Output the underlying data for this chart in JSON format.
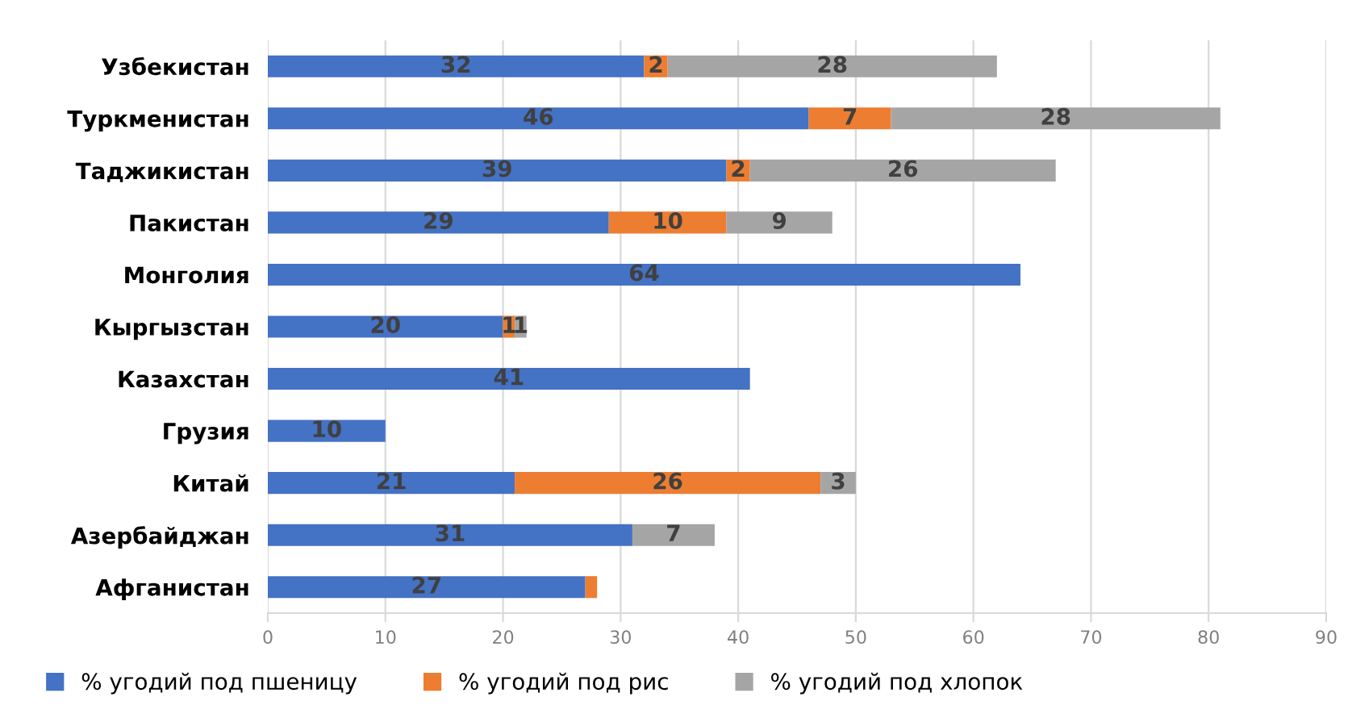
{
  "chart_data": {
    "type": "bar",
    "orientation": "horizontal",
    "stacked": true,
    "categories": [
      "Узбекистан",
      "Туркменистан",
      "Таджикистан",
      "Пакистан",
      "Монголия",
      "Кыргызстан",
      "Казахстан",
      "Грузия",
      "Китай",
      "Азербайджан",
      "Афганистан"
    ],
    "series": [
      {
        "name": "% угодий под пшеницу",
        "color": "#4472c4",
        "values": [
          32,
          46,
          39,
          29,
          64,
          20,
          41,
          10,
          21,
          31,
          27
        ],
        "value_labels": [
          "32",
          "46",
          "39",
          "29",
          "64",
          "20",
          "41",
          "10",
          "21",
          "31",
          "27"
        ]
      },
      {
        "name": "% угодий под рис",
        "color": "#ed7d31",
        "values": [
          2,
          7,
          2,
          10,
          null,
          1,
          null,
          null,
          26,
          null,
          1
        ],
        "value_labels": [
          "2",
          "7",
          "2",
          "10",
          null,
          "1",
          null,
          null,
          "26",
          null,
          null
        ]
      },
      {
        "name": "% угодий под хлопок",
        "color": "#a5a5a5",
        "values": [
          28,
          28,
          26,
          9,
          null,
          1,
          null,
          null,
          3,
          7,
          null
        ],
        "value_labels": [
          "28",
          "28",
          "26",
          "9",
          null,
          "1",
          null,
          null,
          "3",
          "7",
          null
        ]
      }
    ],
    "xlim": [
      0,
      90
    ],
    "xticks": [
      0,
      10,
      20,
      30,
      40,
      50,
      60,
      70,
      80,
      90
    ],
    "grid": "x",
    "legend": "bottom"
  }
}
